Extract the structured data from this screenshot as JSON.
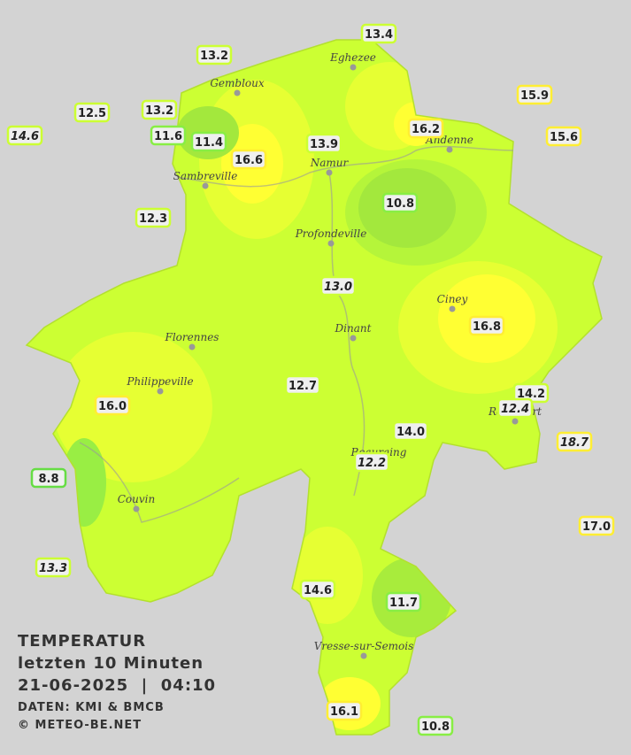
{
  "title": {
    "line1": "TEMPERATUR",
    "line2": "letzten 10 Minuten",
    "line3": "21-06-2025  |  04:10",
    "source": "DATEN: KMI & BMCB",
    "copyright": "© METEO-BE.NET"
  },
  "cities": [
    "Eghezee",
    "Gembloux",
    "Andenne",
    "Namur",
    "Sambreville",
    "Profondeville",
    "Ciney",
    "Florennes",
    "Dinant",
    "Philippeville",
    "Rochefort",
    "Beauraing",
    "Couvin",
    "Vresse-sur-Semois"
  ],
  "stations": [
    "13.4",
    "13.2",
    "12.5",
    "13.2",
    "14.6",
    "11.6",
    "11.4",
    "16.6",
    "13.9",
    "16.2",
    "15.9",
    "15.6",
    "10.8",
    "12.3",
    "13.0",
    "16.8",
    "12.7",
    "14.2",
    "12.4",
    "16.0",
    "14.0",
    "18.7",
    "12.2",
    "8.8",
    "17.0",
    "13.3",
    "14.6",
    "11.7",
    "16.1",
    "10.8"
  ]
}
